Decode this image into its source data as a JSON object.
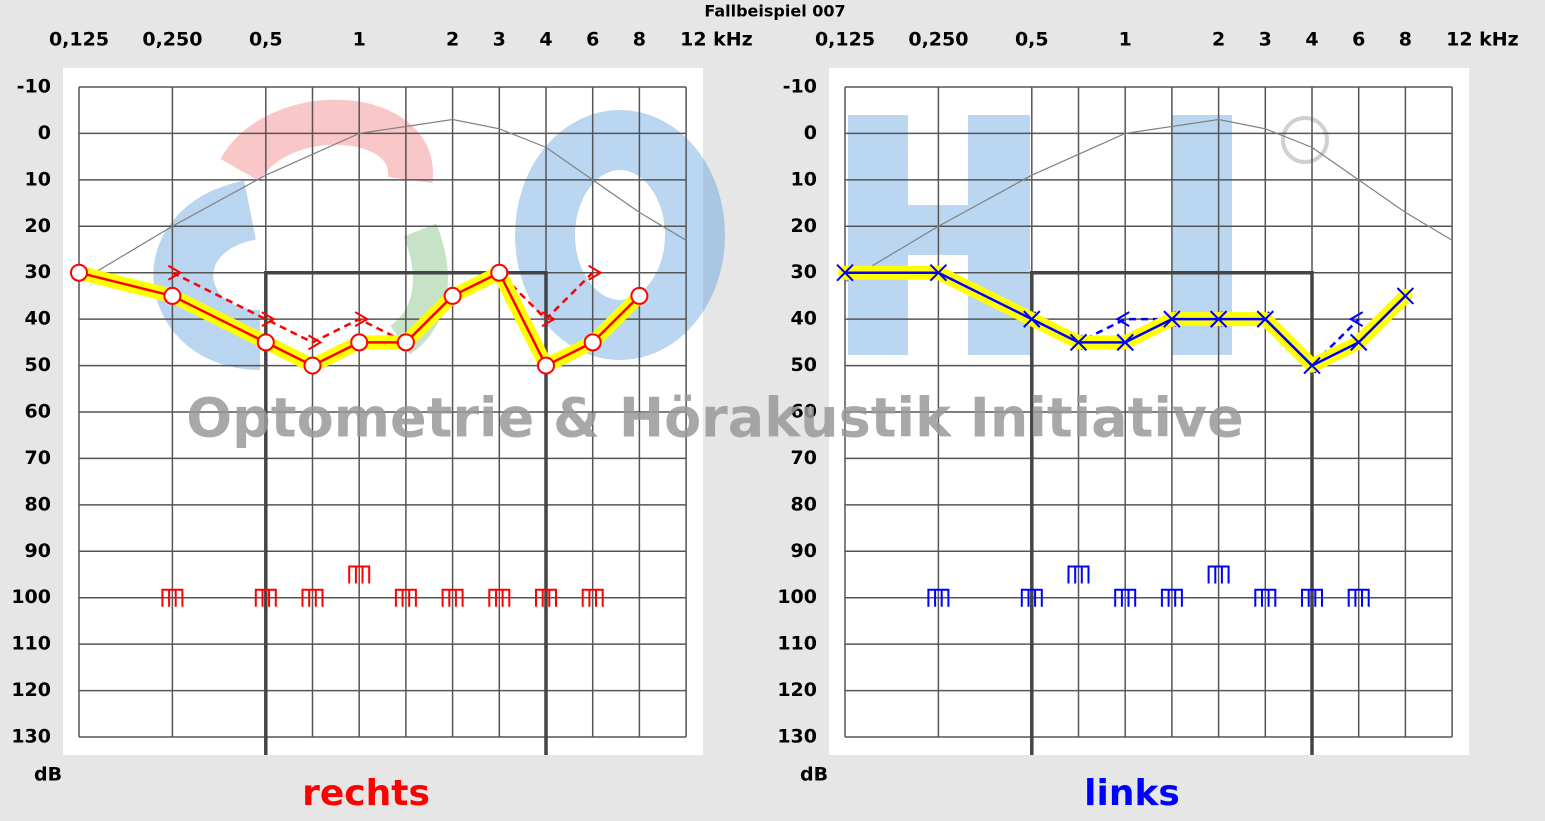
{
  "title": "Fallbeispiel 007",
  "watermark": "Optometrie & Hörakustik Initiative",
  "chart_data": [
    {
      "type": "audiogram",
      "title": "rechts",
      "color": "#ff0000",
      "y_label": "dB",
      "xlim": [
        0.125,
        12
      ],
      "xticks": [
        {
          "value": 0.125,
          "label": "0,125"
        },
        {
          "value": 0.25,
          "label": "0,250"
        },
        {
          "value": 0.5,
          "label": "0,5"
        },
        {
          "value": 0.75,
          "label": null
        },
        1,
        {
          "value": 1.5,
          "label": null
        },
        2,
        3,
        4,
        6,
        8,
        {
          "value": 12,
          "label": "12 kHz"
        }
      ],
      "ylim": [
        -10,
        130
      ],
      "yticks": [
        -10,
        0,
        10,
        20,
        30,
        40,
        50,
        60,
        70,
        80,
        90,
        100,
        110,
        120,
        130
      ],
      "box": {
        "x": [
          0.5,
          4
        ],
        "y": 30
      },
      "series": [
        {
          "marker": "none",
          "line": "solid",
          "color": "#808080",
          "x": [
            0.125,
            0.25,
            0.5,
            1,
            2,
            3,
            4,
            6,
            8,
            12
          ],
          "values": [
            32,
            20,
            9,
            0,
            -3,
            -1,
            3,
            10,
            17,
            23
          ]
        },
        {
          "marker": "bone-right",
          "line": "dashed",
          "color": "#ff0000",
          "x": [
            0.25,
            0.5,
            0.75,
            1,
            1.5,
            2,
            3,
            4,
            6
          ],
          "values": [
            30,
            40,
            45,
            40,
            45,
            35,
            30,
            40,
            30
          ]
        },
        {
          "marker": "circle",
          "line": "solid",
          "highlight": "#ffff00",
          "color": "#ff0000",
          "x": [
            0.125,
            0.25,
            0.5,
            0.75,
            1,
            1.5,
            2,
            3,
            4,
            6,
            8
          ],
          "values": [
            30,
            35,
            45,
            50,
            45,
            45,
            35,
            30,
            50,
            45,
            35
          ]
        },
        {
          "marker": "ucl",
          "line": "none",
          "color": "#ff0000",
          "x": [
            0.25,
            0.5,
            0.75,
            1,
            1.5,
            2,
            3,
            4,
            6
          ],
          "values": [
            100,
            100,
            100,
            95,
            100,
            100,
            100,
            100,
            100
          ]
        }
      ]
    },
    {
      "type": "audiogram",
      "title": "links",
      "color": "#0000ff",
      "y_label": "dB",
      "xlim": [
        0.125,
        12
      ],
      "xticks": [
        {
          "value": 0.125,
          "label": "0,125"
        },
        {
          "value": 0.25,
          "label": "0,250"
        },
        {
          "value": 0.5,
          "label": "0,5"
        },
        {
          "value": 0.75,
          "label": null
        },
        1,
        {
          "value": 1.5,
          "label": null
        },
        2,
        3,
        4,
        6,
        8,
        {
          "value": 12,
          "label": "12 kHz"
        }
      ],
      "ylim": [
        -10,
        130
      ],
      "yticks": [
        -10,
        0,
        10,
        20,
        30,
        40,
        50,
        60,
        70,
        80,
        90,
        100,
        110,
        120,
        130
      ],
      "box": {
        "x": [
          0.5,
          4
        ],
        "y": 30
      },
      "series": [
        {
          "marker": "none",
          "line": "solid",
          "color": "#808080",
          "x": [
            0.125,
            0.25,
            0.5,
            1,
            2,
            3,
            4,
            6,
            8,
            12
          ],
          "values": [
            32,
            20,
            9,
            0,
            -3,
            -1,
            3,
            10,
            17,
            23
          ]
        },
        {
          "marker": "bone-left",
          "line": "dashed",
          "color": "#0000ff",
          "x": [
            0.5,
            0.75,
            1,
            1.5,
            2,
            3,
            4,
            6
          ],
          "values": [
            40,
            45,
            40,
            40,
            40,
            40,
            50,
            40
          ]
        },
        {
          "marker": "x",
          "line": "solid",
          "highlight": "#ffff00",
          "color": "#0000ff",
          "x": [
            0.125,
            0.25,
            0.5,
            0.75,
            1,
            1.5,
            2,
            3,
            4,
            6,
            8
          ],
          "values": [
            30,
            30,
            40,
            45,
            45,
            40,
            40,
            40,
            50,
            45,
            35
          ]
        },
        {
          "marker": "ucl",
          "line": "none",
          "color": "#0000ff",
          "x": [
            0.25,
            0.5,
            0.75,
            1,
            1.5,
            2,
            3,
            4,
            6
          ],
          "values": [
            100,
            100,
            95,
            100,
            100,
            95,
            100,
            100,
            100
          ]
        }
      ]
    }
  ]
}
